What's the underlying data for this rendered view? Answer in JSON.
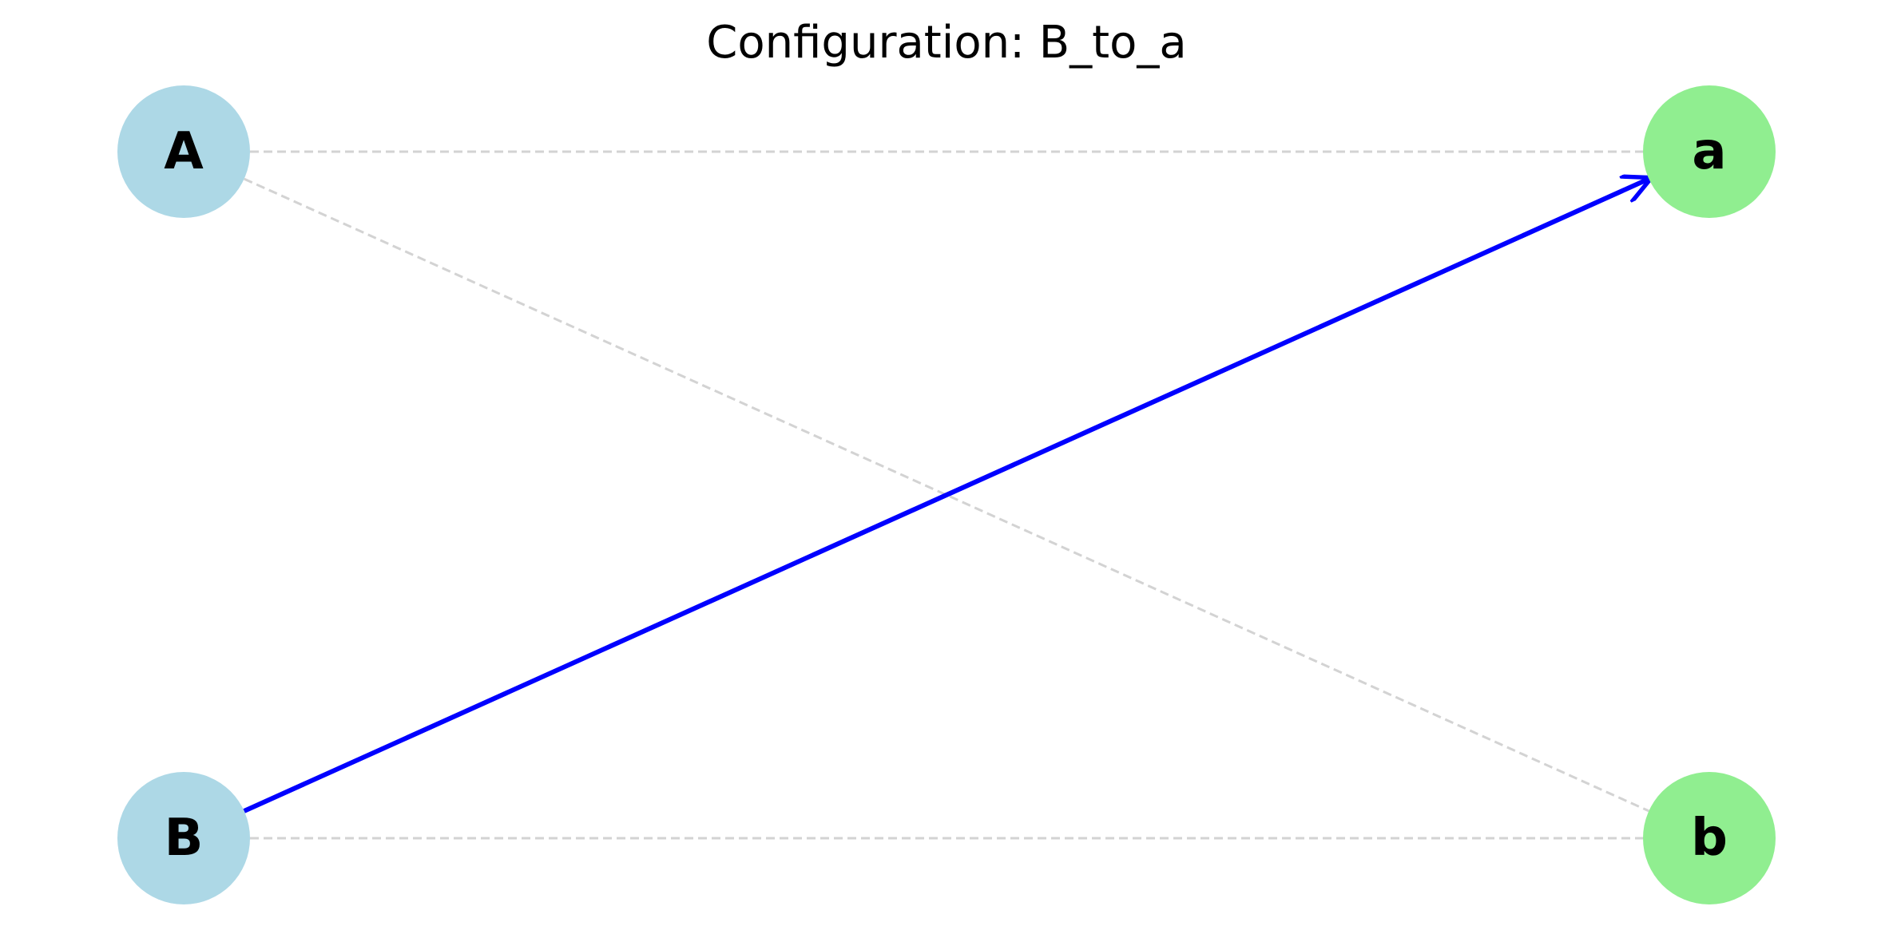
{
  "title": "Configuration: B_to_a",
  "colors": {
    "left_node": "#add8e6",
    "right_node": "#90ee90",
    "inactive_edge": "#d3d3d3",
    "active_edge": "#0000ff",
    "background": "#ffffff"
  },
  "nodes": [
    {
      "id": "A",
      "label": "A",
      "group": "left"
    },
    {
      "id": "B",
      "label": "B",
      "group": "left"
    },
    {
      "id": "a",
      "label": "a",
      "group": "right"
    },
    {
      "id": "b",
      "label": "b",
      "group": "right"
    }
  ],
  "edges": [
    {
      "from": "A",
      "to": "a",
      "active": false
    },
    {
      "from": "A",
      "to": "b",
      "active": false
    },
    {
      "from": "B",
      "to": "b",
      "active": false
    },
    {
      "from": "B",
      "to": "a",
      "active": true,
      "directed": true
    }
  ]
}
